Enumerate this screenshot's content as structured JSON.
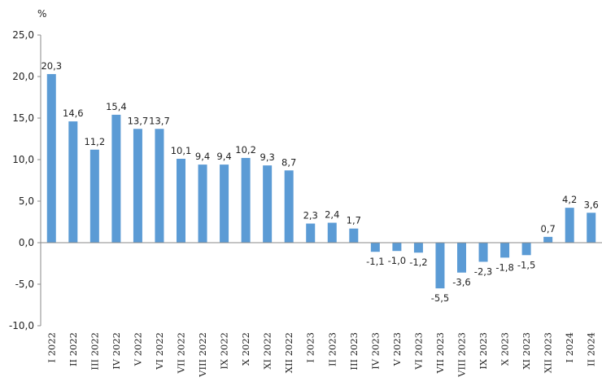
{
  "chart_data": {
    "type": "bar",
    "title": "",
    "xlabel": "",
    "ylabel": "%",
    "ylim": [
      -10,
      25
    ],
    "ytick_step": 5,
    "ytick_labels": [
      "-10,0",
      "-5,0",
      "0,0",
      "5,0",
      "10,0",
      "15,0",
      "20,0",
      "25,0"
    ],
    "grid": false,
    "bar_color": "#5B9BD5",
    "categories": [
      "I 2022",
      "II 2022",
      "III 2022",
      "IV 2022",
      "V 2022",
      "VI 2022",
      "VII 2022",
      "VIII 2022",
      "IX 2022",
      "X 2022",
      "XI 2022",
      "XII 2022",
      "I 2023",
      "II 2023",
      "III 2023",
      "IV 2023",
      "V 2023",
      "VI 2023",
      "VII 2023",
      "VIII 2023",
      "IX 2023",
      "X 2023",
      "XI 2023",
      "XII 2023",
      "I 2024",
      "II 2024"
    ],
    "values": [
      20.3,
      14.6,
      11.2,
      15.4,
      13.7,
      13.7,
      10.1,
      9.4,
      9.4,
      10.2,
      9.3,
      8.7,
      2.3,
      2.4,
      1.7,
      -1.1,
      -1.0,
      -1.2,
      -5.5,
      -3.6,
      -2.3,
      -1.8,
      -1.5,
      0.7,
      4.2,
      3.6
    ],
    "data_labels": [
      "20,3",
      "14,6",
      "11,2",
      "15,4",
      "13,7",
      "13,7",
      "10,1",
      "9,4",
      "9,4",
      "10,2",
      "9,3",
      "8,7",
      "2,3",
      "2,4",
      "1,7",
      "-1,1",
      "-1,0",
      "-1,2",
      "-5,5",
      "-3,6",
      "-2,3",
      "-1,8",
      "-1,5",
      "0,7",
      "4,2",
      "3,6"
    ]
  }
}
